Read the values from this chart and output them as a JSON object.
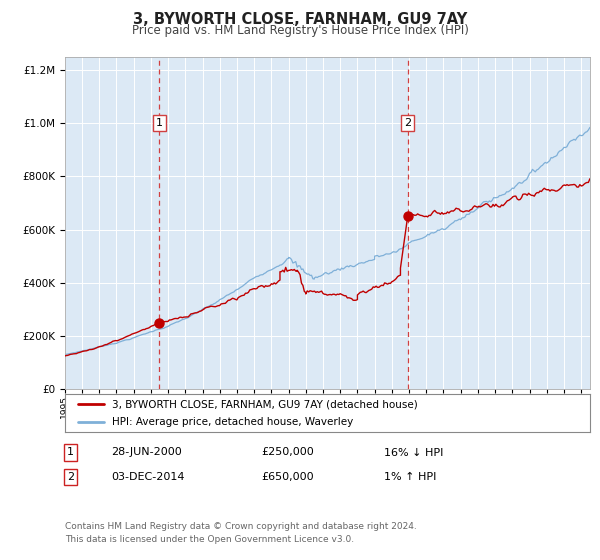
{
  "title": "3, BYWORTH CLOSE, FARNHAM, GU9 7AY",
  "subtitle": "Price paid vs. HM Land Registry's House Price Index (HPI)",
  "legend_line1": "3, BYWORTH CLOSE, FARNHAM, GU9 7AY (detached house)",
  "legend_line2": "HPI: Average price, detached house, Waverley",
  "marker1_date": 2000.49,
  "marker1_value": 250000,
  "marker1_label": "1",
  "marker1_text_date": "28-JUN-2000",
  "marker1_text_price": "£250,000",
  "marker1_text_hpi": "16% ↓ HPI",
  "marker2_date": 2014.92,
  "marker2_value": 650000,
  "marker2_label": "2",
  "marker2_text_date": "03-DEC-2014",
  "marker2_text_price": "£650,000",
  "marker2_text_hpi": "1% ↑ HPI",
  "red_line_color": "#c00000",
  "blue_line_color": "#7fb0d8",
  "marker_color": "#c00000",
  "vline_color": "#d04040",
  "plot_bg": "#dce9f5",
  "grid_color": "#ffffff",
  "xmin": 1995.0,
  "xmax": 2025.5,
  "ymin": 0,
  "ymax": 1250000,
  "footer": "Contains HM Land Registry data © Crown copyright and database right 2024.\nThis data is licensed under the Open Government Licence v3.0."
}
